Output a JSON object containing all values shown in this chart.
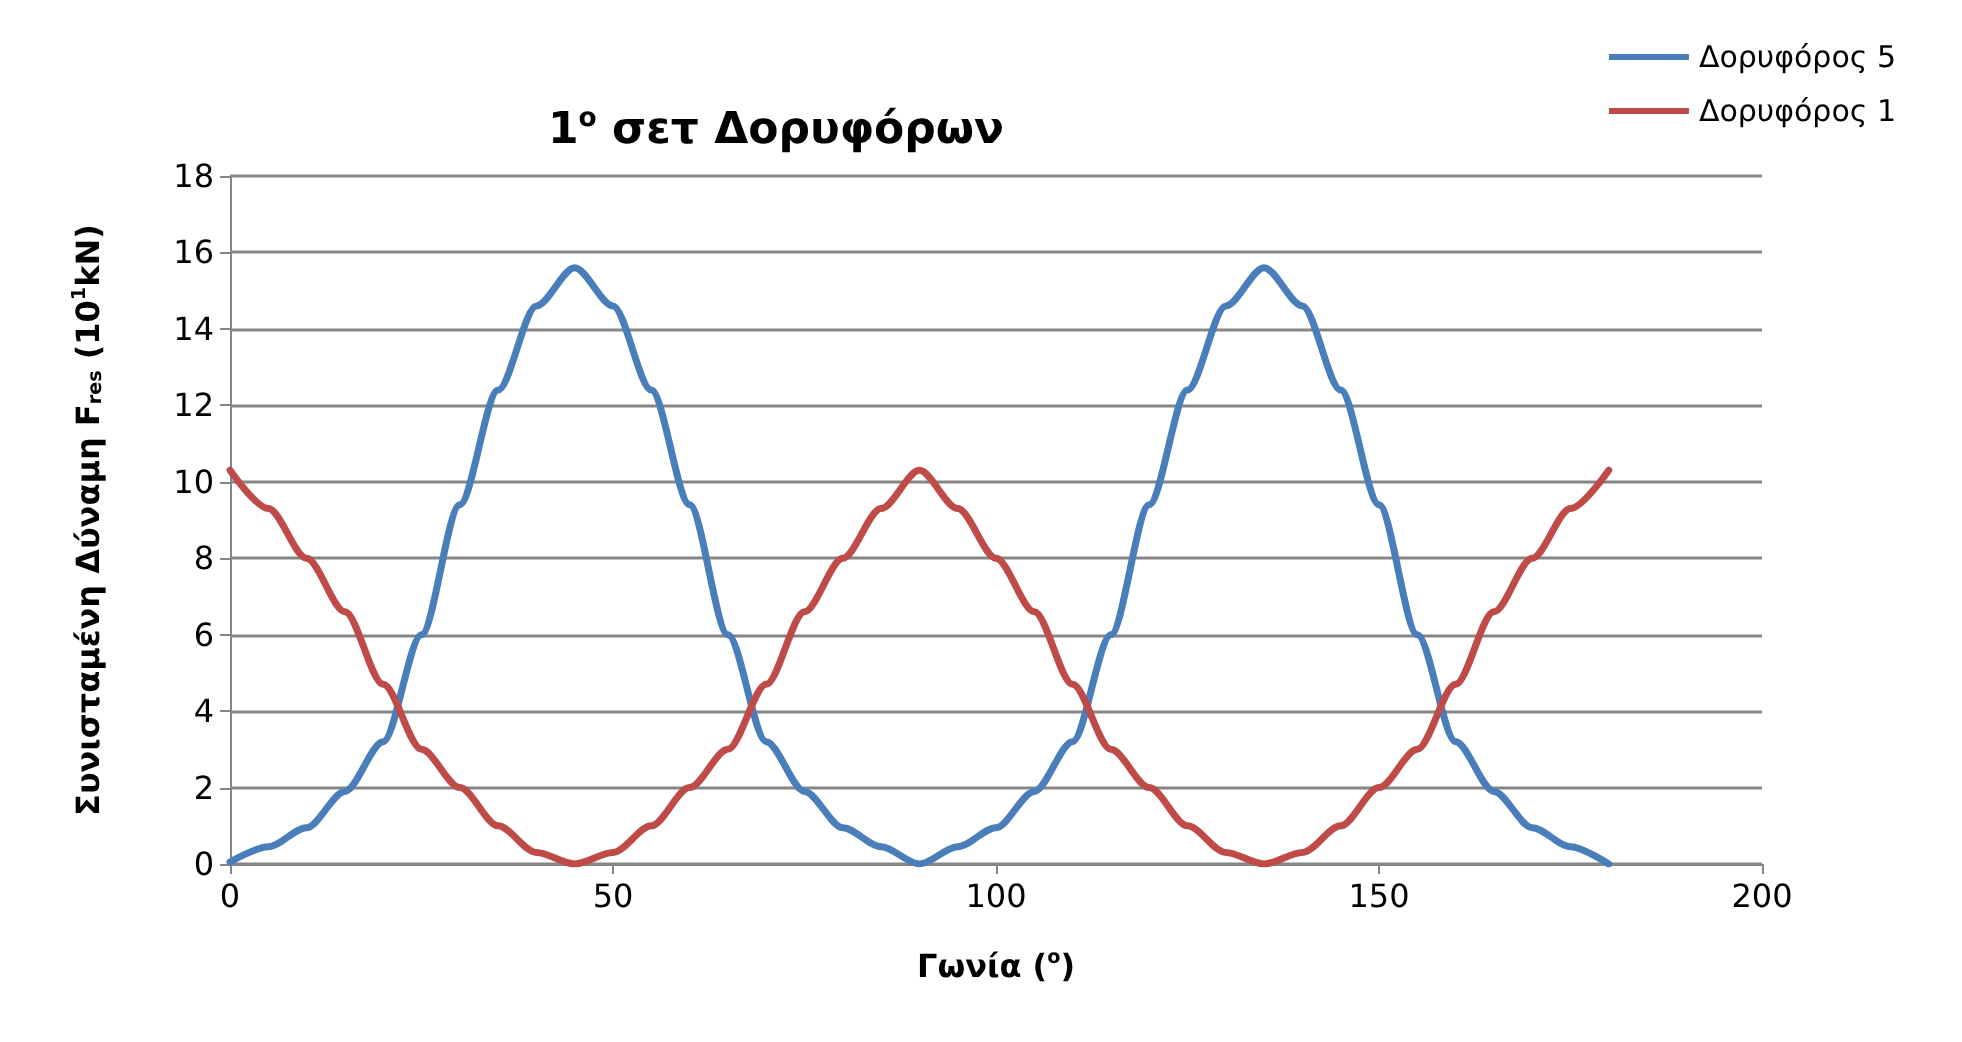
{
  "chart_data": {
    "type": "line",
    "title": "1$^{o}$ σετ Δορυφόρων",
    "xlabel": "Γωνία ($^{o}$)",
    "ylabel": "Συνισταμένη Δύναμη F$_{res}$ (10$^{1}$kN)",
    "x": [
      0,
      5,
      10,
      15,
      20,
      25,
      30,
      35,
      40,
      45,
      50,
      55,
      60,
      65,
      70,
      75,
      80,
      85,
      90,
      95,
      100,
      105,
      110,
      115,
      120,
      125,
      130,
      135,
      140,
      145,
      150,
      155,
      160,
      165,
      170,
      175,
      180
    ],
    "series": [
      {
        "name": "Δορυφόρος 5",
        "color": "#4a7ebb",
        "values": [
          0.05,
          0.45,
          0.95,
          1.9,
          3.2,
          6.0,
          9.4,
          12.4,
          14.6,
          15.6,
          14.6,
          12.4,
          9.4,
          6.0,
          3.2,
          1.9,
          0.95,
          0.45,
          0,
          0.45,
          0.95,
          1.9,
          3.2,
          6.0,
          9.4,
          12.4,
          14.6,
          15.6,
          14.6,
          12.4,
          9.4,
          6.0,
          3.2,
          1.9,
          0.95,
          0.45,
          0
        ]
      },
      {
        "name": "Δορυφόρος 1",
        "color": "#be4b48",
        "values": [
          10.3,
          9.3,
          8.0,
          6.6,
          4.7,
          3.0,
          2.0,
          1.0,
          0.3,
          0,
          0.3,
          1.0,
          2.0,
          3.0,
          4.7,
          6.6,
          8.0,
          9.3,
          10.3,
          9.3,
          8.0,
          6.6,
          4.7,
          3.0,
          2.0,
          1.0,
          0.3,
          0,
          0.3,
          1.0,
          2.0,
          3.0,
          4.7,
          6.6,
          8.0,
          9.3,
          10.3
        ]
      }
    ],
    "xlim": [
      0,
      200
    ],
    "xticks": [
      0,
      50,
      100,
      150,
      200
    ],
    "ylim": [
      0,
      18
    ],
    "yticks": [
      0,
      2,
      4,
      6,
      8,
      10,
      12,
      14,
      16,
      18
    ],
    "grid": "y",
    "legend": "top right",
    "marker": "none",
    "line_style": "solid"
  }
}
